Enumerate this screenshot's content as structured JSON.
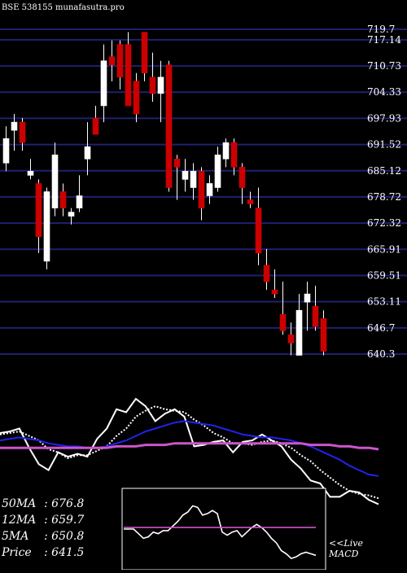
{
  "header": {
    "title": "BSE 538155 munafasutra.pro"
  },
  "chart_data": {
    "type": "candlestick",
    "title": "BSE 538155 munafasutra.pro",
    "y_ticks": [
      719.7,
      717.14,
      710.73,
      704.33,
      697.93,
      691.52,
      685.12,
      678.72,
      672.32,
      665.91,
      659.51,
      653.11,
      646.7,
      640.3
    ],
    "ylim": [
      640.3,
      719.7
    ],
    "grid": true,
    "candles": [
      {
        "o": 687,
        "h": 696,
        "l": 685,
        "c": 693
      },
      {
        "o": 695,
        "h": 699,
        "l": 690,
        "c": 697
      },
      {
        "o": 697,
        "h": 698,
        "l": 690,
        "c": 692
      },
      {
        "o": 684,
        "h": 688,
        "l": 683,
        "c": 685
      },
      {
        "o": 682,
        "h": 683,
        "l": 665,
        "c": 669
      },
      {
        "o": 663,
        "h": 681,
        "l": 661,
        "c": 680
      },
      {
        "o": 676,
        "h": 692,
        "l": 674,
        "c": 689
      },
      {
        "o": 680,
        "h": 682,
        "l": 674,
        "c": 676
      },
      {
        "o": 674,
        "h": 676,
        "l": 672,
        "c": 675
      },
      {
        "o": 676,
        "h": 684,
        "l": 675,
        "c": 679
      },
      {
        "o": 688,
        "h": 697,
        "l": 684,
        "c": 691
      },
      {
        "o": 698,
        "h": 701,
        "l": 694,
        "c": 694
      },
      {
        "o": 701,
        "h": 716,
        "l": 697,
        "c": 712
      },
      {
        "o": 713,
        "h": 717,
        "l": 707,
        "c": 711
      },
      {
        "o": 716,
        "h": 717,
        "l": 705,
        "c": 708
      },
      {
        "o": 716,
        "h": 719,
        "l": 701,
        "c": 701
      },
      {
        "o": 707,
        "h": 709,
        "l": 697,
        "c": 699
      },
      {
        "o": 719,
        "h": 719,
        "l": 707,
        "c": 709
      },
      {
        "o": 708,
        "h": 714,
        "l": 702,
        "c": 704
      },
      {
        "o": 704,
        "h": 712,
        "l": 697,
        "c": 708
      },
      {
        "o": 711,
        "h": 712,
        "l": 680,
        "c": 681
      },
      {
        "o": 688,
        "h": 689,
        "l": 678,
        "c": 686
      },
      {
        "o": 683,
        "h": 688,
        "l": 680,
        "c": 685
      },
      {
        "o": 681,
        "h": 687,
        "l": 678,
        "c": 685
      },
      {
        "o": 685,
        "h": 686,
        "l": 673,
        "c": 676
      },
      {
        "o": 679,
        "h": 684,
        "l": 677,
        "c": 682
      },
      {
        "o": 681,
        "h": 691,
        "l": 680,
        "c": 689
      },
      {
        "o": 688,
        "h": 693,
        "l": 686,
        "c": 692
      },
      {
        "o": 692,
        "h": 693,
        "l": 684,
        "c": 686
      },
      {
        "o": 686,
        "h": 687,
        "l": 677,
        "c": 681
      },
      {
        "o": 678,
        "h": 680,
        "l": 676,
        "c": 677
      },
      {
        "o": 676,
        "h": 681,
        "l": 662,
        "c": 665
      },
      {
        "o": 662,
        "h": 666,
        "l": 656,
        "c": 658
      },
      {
        "o": 656,
        "h": 661,
        "l": 654,
        "c": 655
      },
      {
        "o": 650,
        "h": 658,
        "l": 645,
        "c": 646
      },
      {
        "o": 645,
        "h": 648,
        "l": 640,
        "c": 643
      },
      {
        "o": 640,
        "h": 655,
        "l": 640,
        "c": 651
      },
      {
        "o": 653,
        "h": 658,
        "l": 646,
        "c": 655
      },
      {
        "o": 652,
        "h": 657,
        "l": 646,
        "c": 647
      },
      {
        "o": 649,
        "h": 651,
        "l": 640,
        "c": 641
      }
    ],
    "indicator_lines": [
      {
        "name": "price",
        "color": "#ffffff",
        "dashed": false,
        "values": [
          689,
          690,
          692,
          679,
          668,
          664,
          676,
          673,
          675,
          673,
          685,
          692,
          705,
          703,
          712,
          707,
          697,
          702,
          705,
          700,
          680,
          681,
          683,
          684,
          676,
          683,
          684,
          688,
          684,
          680,
          671,
          665,
          657,
          655,
          646,
          646,
          650,
          649,
          644,
          641
        ]
      },
      {
        "name": "5MA",
        "color": "#ffffff",
        "dashed": true,
        "values": [
          688,
          689,
          690,
          687,
          684,
          678,
          676,
          672,
          674,
          674,
          677,
          680,
          687,
          692,
          700,
          704,
          707,
          705,
          704,
          703,
          698,
          694,
          689,
          686,
          682,
          682,
          681,
          683,
          684,
          682,
          679,
          674,
          670,
          664,
          659,
          654,
          650,
          648,
          647,
          645
        ]
      },
      {
        "name": "12MA",
        "color": "#2222ee",
        "dashed": false,
        "values": [
          684,
          685,
          686,
          685,
          684,
          682,
          681,
          680,
          680,
          679,
          679,
          680,
          682,
          684,
          687,
          690,
          692,
          694,
          696,
          697,
          696,
          695,
          694,
          692,
          690,
          688,
          687,
          686,
          686,
          685,
          684,
          682,
          680,
          677,
          674,
          671,
          667,
          664,
          661,
          660
        ]
      },
      {
        "name": "50MA",
        "color": "#cc55cc",
        "dashed": false,
        "values": [
          679,
          679,
          679,
          679,
          679,
          679,
          679,
          679,
          679,
          679,
          679,
          679,
          680,
          680,
          680,
          681,
          681,
          681,
          682,
          682,
          682,
          682,
          682,
          682,
          682,
          682,
          682,
          682,
          682,
          682,
          682,
          682,
          681,
          681,
          681,
          680,
          680,
          679,
          679,
          678
        ]
      },
      {
        "name": "macd",
        "color": "#ffffff",
        "dashed": false,
        "values": [
          0,
          0,
          0,
          -0.3,
          -0.6,
          -0.5,
          -0.2,
          -0.3,
          -0.1,
          -0.1,
          0.2,
          0.5,
          0.9,
          1.1,
          1.5,
          1.4,
          0.9,
          1.0,
          1.2,
          1.0,
          -0.2,
          -0.4,
          -0.2,
          -0.1,
          -0.5,
          -0.2,
          0.1,
          0.3,
          0.1,
          -0.2,
          -0.6,
          -0.9,
          -1.4,
          -1.6,
          -1.9,
          -1.8,
          -1.6,
          -1.5,
          -1.6,
          -1.7
        ]
      },
      {
        "name": "signal",
        "color": "#cc55cc",
        "dashed": false,
        "values": [
          0.1,
          0.1,
          0.1,
          0.1,
          0.1,
          0.1,
          0.1,
          0.1,
          0.1,
          0.1,
          0.1,
          0.1,
          0.1,
          0.1,
          0.1,
          0.1,
          0.1,
          0.1,
          0.1,
          0.1,
          0.1,
          0.1,
          0.1,
          0.1,
          0.1,
          0.1,
          0.1,
          0.1,
          0.1,
          0.1,
          0.1,
          0.1,
          0.1,
          0.1,
          0.1,
          0.1,
          0.1,
          0.1,
          0.1,
          0.1
        ]
      }
    ],
    "ma_panel": [
      {
        "label": "50MA",
        "value": "676.8"
      },
      {
        "label": "12MA",
        "value": "659.7"
      },
      {
        "label": "5MA",
        "value": "650.8"
      },
      {
        "label": "Price",
        "value": "641.5"
      }
    ],
    "macd_label": "<<Live\nMACD",
    "colors": {
      "up": "#ffffff",
      "down": "#cc0000",
      "grid": "#202070",
      "background": "#000000"
    }
  }
}
